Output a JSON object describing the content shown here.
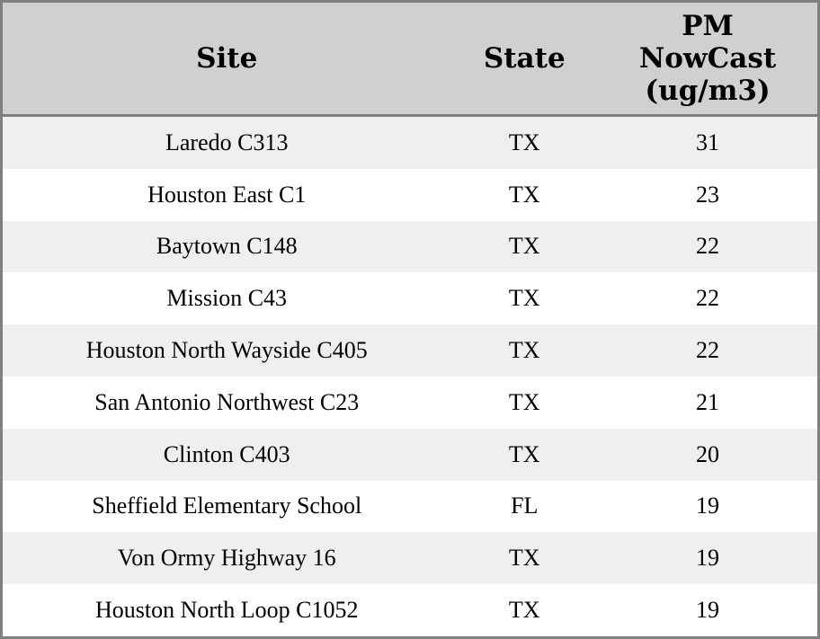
{
  "colors": {
    "border": "#808080",
    "header_bg": "#d0d0d0",
    "row_alt_bg": "#efefef",
    "row_bg": "#ffffff",
    "text": "#000000"
  },
  "chart_data": {
    "type": "table",
    "columns": [
      {
        "label": "Site"
      },
      {
        "label": "State"
      },
      {
        "label": "PM NowCast (ug/m3)",
        "lines": [
          "PM",
          "NowCast",
          "(ug/m3)"
        ]
      }
    ],
    "rows": [
      {
        "site": "Laredo C313",
        "state": "TX",
        "pm_nowcast": "31"
      },
      {
        "site": "Houston East C1",
        "state": "TX",
        "pm_nowcast": "23"
      },
      {
        "site": "Baytown C148",
        "state": "TX",
        "pm_nowcast": "22"
      },
      {
        "site": "Mission C43",
        "state": "TX",
        "pm_nowcast": "22"
      },
      {
        "site": "Houston North Wayside C405",
        "state": "TX",
        "pm_nowcast": "22"
      },
      {
        "site": "San Antonio Northwest C23",
        "state": "TX",
        "pm_nowcast": "21"
      },
      {
        "site": "Clinton C403",
        "state": "TX",
        "pm_nowcast": "20"
      },
      {
        "site": "Sheffield Elementary School",
        "state": "FL",
        "pm_nowcast": "19"
      },
      {
        "site": "Von Ormy Highway 16",
        "state": "TX",
        "pm_nowcast": "19"
      },
      {
        "site": "Houston North Loop C1052",
        "state": "TX",
        "pm_nowcast": "19"
      }
    ]
  }
}
